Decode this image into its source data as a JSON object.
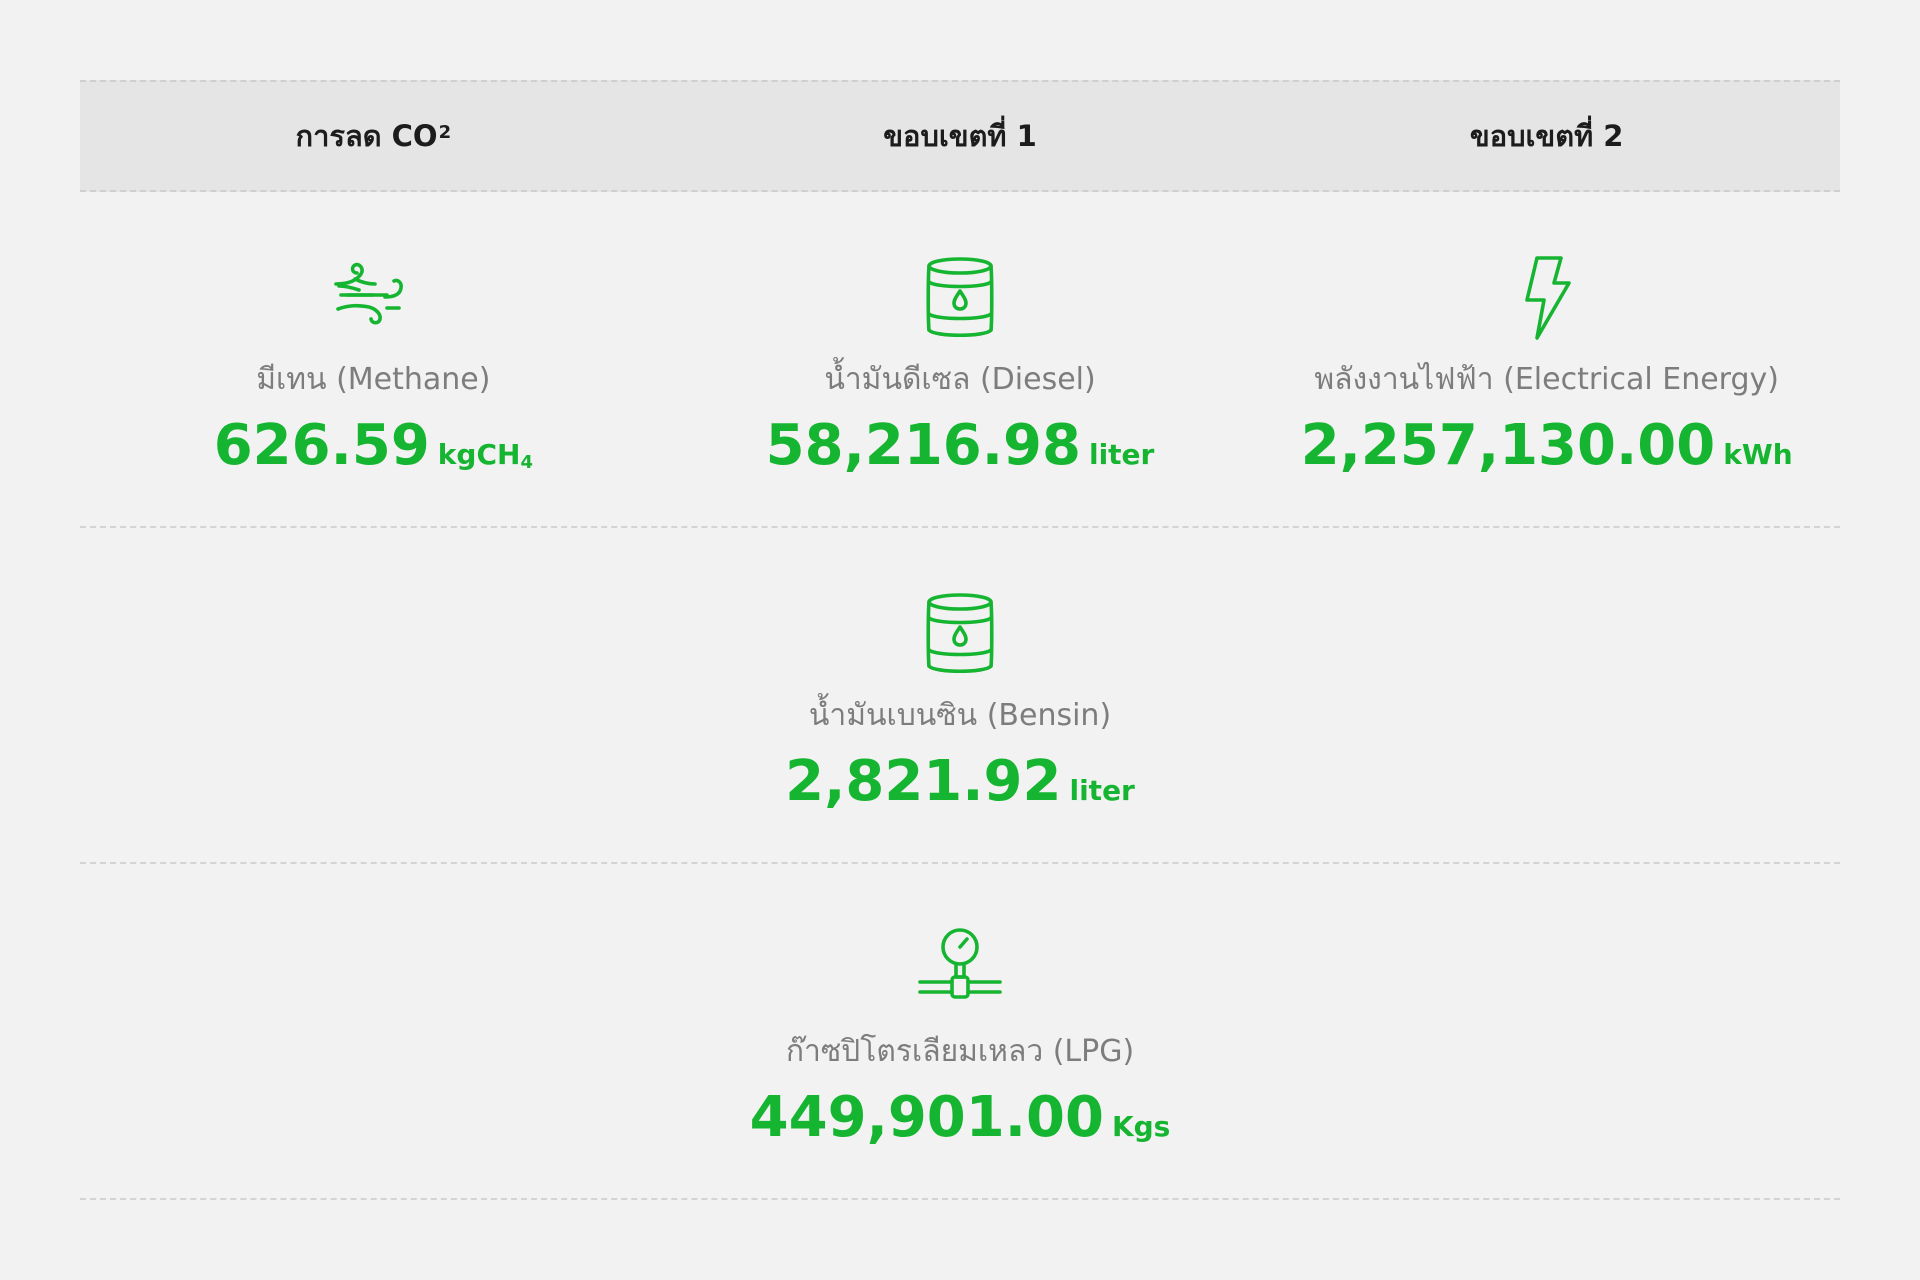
{
  "header": {
    "col1": "การลด CO",
    "col1_sup": "2",
    "col2": "ขอบเขตที่ 1",
    "col3": "ขอบเขตที่ 2"
  },
  "items": {
    "methane": {
      "icon": "wind-icon",
      "label": "มีเทน (Methane)",
      "value": "626.59",
      "unit": "kgCH",
      "unit_sub": "4"
    },
    "diesel": {
      "icon": "oil-barrel-icon",
      "label": "น้ำมันดีเซล (Diesel)",
      "value": "58,216.98",
      "unit": "liter"
    },
    "electric": {
      "icon": "lightning-icon",
      "label": "พลังงานไฟฟ้า (Electrical Energy)",
      "value": "2,257,130.00",
      "unit": "kWh"
    },
    "bensin": {
      "icon": "oil-barrel-icon",
      "label": "น้ำมันเบนซิน (Bensin)",
      "value": "2,821.92",
      "unit": "liter"
    },
    "lpg": {
      "icon": "gas-pipe-gauge-icon",
      "label": "ก๊าซปิโตรเลียมเหลว (LPG)",
      "value": "449,901.00",
      "unit": "Kgs"
    }
  },
  "colors": {
    "accent": "#16b531",
    "label": "#7d7d7d",
    "header_bg": "#e5e5e5",
    "page_bg": "#f2f2f2"
  }
}
